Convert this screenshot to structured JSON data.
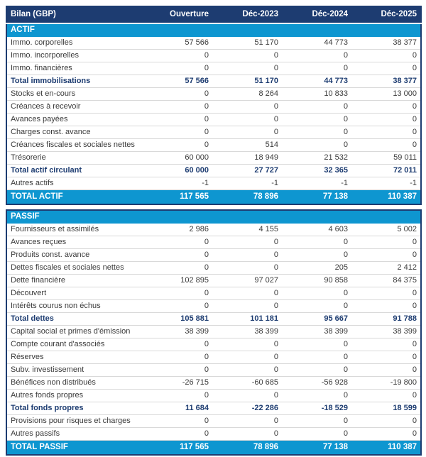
{
  "colors": {
    "header_bg": "#1d3c71",
    "section_bg": "#0e96d0",
    "row_text": "#3a3a3a",
    "subtotal_text": "#1d3c71",
    "row_border": "#d9d9d9"
  },
  "chart_data": {
    "type": "table",
    "title": "Bilan (GBP)",
    "columns": [
      "Ouverture",
      "Déc-2023",
      "Déc-2024",
      "Déc-2025"
    ],
    "sections": [
      {
        "name": "ACTIF",
        "rows": [
          {
            "label": "Immo. corporelles",
            "values": [
              "57 566",
              "51 170",
              "44 773",
              "38 377"
            ],
            "bold": false
          },
          {
            "label": "Immo. incorporelles",
            "values": [
              "0",
              "0",
              "0",
              "0"
            ],
            "bold": false
          },
          {
            "label": "Immo. financières",
            "values": [
              "0",
              "0",
              "0",
              "0"
            ],
            "bold": false
          },
          {
            "label": "Total immobilisations",
            "values": [
              "57 566",
              "51 170",
              "44 773",
              "38 377"
            ],
            "bold": true
          },
          {
            "label": "Stocks et en-cours",
            "values": [
              "0",
              "8 264",
              "10 833",
              "13 000"
            ],
            "bold": false
          },
          {
            "label": "Créances à recevoir",
            "values": [
              "0",
              "0",
              "0",
              "0"
            ],
            "bold": false
          },
          {
            "label": "Avances payées",
            "values": [
              "0",
              "0",
              "0",
              "0"
            ],
            "bold": false
          },
          {
            "label": "Charges const. avance",
            "values": [
              "0",
              "0",
              "0",
              "0"
            ],
            "bold": false
          },
          {
            "label": "Créances fiscales et sociales nettes",
            "values": [
              "0",
              "514",
              "0",
              "0"
            ],
            "bold": false
          },
          {
            "label": "Trésorerie",
            "values": [
              "60 000",
              "18 949",
              "21 532",
              "59 011"
            ],
            "bold": false
          },
          {
            "label": "Total actif circulant",
            "values": [
              "60 000",
              "27 727",
              "32 365",
              "72 011"
            ],
            "bold": true
          },
          {
            "label": "Autres actifs",
            "values": [
              "-1",
              "-1",
              "-1",
              "-1"
            ],
            "bold": false
          }
        ],
        "total": {
          "label": "TOTAL ACTIF",
          "values": [
            "117 565",
            "78 896",
            "77 138",
            "110 387"
          ]
        }
      },
      {
        "name": "PASSIF",
        "rows": [
          {
            "label": "Fournisseurs et assimilés",
            "values": [
              "2 986",
              "4 155",
              "4 603",
              "5 002"
            ],
            "bold": false
          },
          {
            "label": "Avances reçues",
            "values": [
              "0",
              "0",
              "0",
              "0"
            ],
            "bold": false
          },
          {
            "label": "Produits const. avance",
            "values": [
              "0",
              "0",
              "0",
              "0"
            ],
            "bold": false
          },
          {
            "label": "Dettes fiscales et sociales nettes",
            "values": [
              "0",
              "0",
              "205",
              "2 412"
            ],
            "bold": false
          },
          {
            "label": "Dette financière",
            "values": [
              "102 895",
              "97 027",
              "90 858",
              "84 375"
            ],
            "bold": false
          },
          {
            "label": "Découvert",
            "values": [
              "0",
              "0",
              "0",
              "0"
            ],
            "bold": false
          },
          {
            "label": "Intérêts courus non échus",
            "values": [
              "0",
              "0",
              "0",
              "0"
            ],
            "bold": false
          },
          {
            "label": "Total dettes",
            "values": [
              "105 881",
              "101 181",
              "95 667",
              "91 788"
            ],
            "bold": true
          },
          {
            "label": "Capital social et primes d'émission",
            "values": [
              "38 399",
              "38 399",
              "38 399",
              "38 399"
            ],
            "bold": false
          },
          {
            "label": "Compte courant d'associés",
            "values": [
              "0",
              "0",
              "0",
              "0"
            ],
            "bold": false
          },
          {
            "label": "Réserves",
            "values": [
              "0",
              "0",
              "0",
              "0"
            ],
            "bold": false
          },
          {
            "label": "Subv. investissement",
            "values": [
              "0",
              "0",
              "0",
              "0"
            ],
            "bold": false
          },
          {
            "label": "Bénéfices non distribués",
            "values": [
              "-26 715",
              "-60 685",
              "-56 928",
              "-19 800"
            ],
            "bold": false
          },
          {
            "label": "Autres fonds propres",
            "values": [
              "0",
              "0",
              "0",
              "0"
            ],
            "bold": false
          },
          {
            "label": "Total fonds propres",
            "values": [
              "11 684",
              "-22 286",
              "-18 529",
              "18 599"
            ],
            "bold": true
          },
          {
            "label": "Provisions pour risques et charges",
            "values": [
              "0",
              "0",
              "0",
              "0"
            ],
            "bold": false
          },
          {
            "label": "Autres passifs",
            "values": [
              "0",
              "0",
              "0",
              "0"
            ],
            "bold": false
          }
        ],
        "total": {
          "label": "TOTAL PASSIF",
          "values": [
            "117 565",
            "78 896",
            "77 138",
            "110 387"
          ]
        }
      }
    ]
  }
}
